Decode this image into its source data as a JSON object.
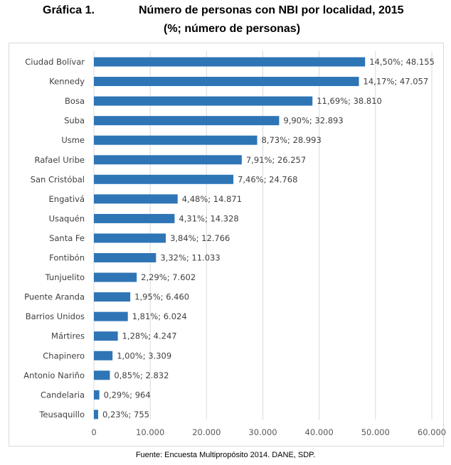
{
  "header": {
    "label": "Gráfica 1.",
    "title": "Número de personas con NBI por localidad, 2015",
    "subtitle": "(%; número de personas)"
  },
  "source": "Fuente: Encuesta Multipropósito 2014. DANE, SDP.",
  "chart_data": {
    "type": "bar",
    "orientation": "horizontal",
    "categories": [
      "Ciudad Bolívar",
      "Kennedy",
      "Bosa",
      "Suba",
      "Usme",
      "Rafael Uribe",
      "San Cristóbal",
      "Engativá",
      "Usaquén",
      "Santa Fe",
      "Fontibón",
      "Tunjuelito",
      "Puente Aranda",
      "Barrios Unidos",
      "Mártires",
      "Chapinero",
      "Antonio Nariño",
      "Candelaria",
      "Teusaquillo"
    ],
    "values": [
      48155,
      47057,
      38810,
      32893,
      28993,
      26257,
      24768,
      14871,
      14328,
      12766,
      11033,
      7602,
      6460,
      6024,
      4247,
      3309,
      2832,
      964,
      755
    ],
    "data_labels": [
      "14,50%; 48.155",
      "14,17%; 47.057",
      "11,69%; 38.810",
      "9,90%; 32.893",
      "8,73%; 28.993",
      "7,91%; 26.257",
      "7,46%; 24.768",
      "4,48%; 14.871",
      "4,31%; 14.328",
      "3,84%; 12.766",
      "3,32%; 11.033",
      "2,29%; 7.602",
      "1,95%; 6.460",
      "1,81%; 6.024",
      "1,28%; 4.247",
      "1,00%; 3.309",
      "0,85%; 2.832",
      "0,29%; 964",
      "0,23%; 755"
    ],
    "xlim": [
      0,
      60000
    ],
    "x_ticks": [
      0,
      10000,
      20000,
      30000,
      40000,
      50000,
      60000
    ],
    "x_tick_labels": [
      "0",
      "10.000",
      "20.000",
      "30.000",
      "40.000",
      "50.000",
      "60.000"
    ],
    "grid": true,
    "legend": "none",
    "bar_color": "#2e75b6",
    "grid_color": "#d9d9d9"
  }
}
